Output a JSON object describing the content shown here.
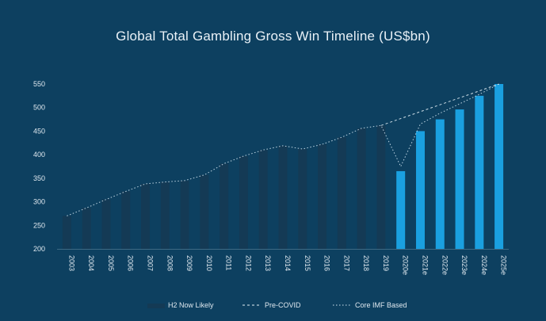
{
  "chart_data": {
    "type": "bar",
    "title": "Global Total Gambling Gross Win Timeline (US$bn)",
    "xlabel": "",
    "ylabel": "",
    "ylim": [
      200,
      550
    ],
    "yticks": [
      200,
      250,
      300,
      350,
      400,
      450,
      500,
      550
    ],
    "categories": [
      "2003",
      "2004",
      "2005",
      "2006",
      "2007",
      "2008",
      "2009",
      "2010",
      "2011",
      "2012",
      "2013",
      "2014",
      "2015",
      "2016",
      "2017",
      "2018",
      "2019",
      "2020e",
      "2021e",
      "2022e",
      "2023e",
      "2024e",
      "2025e"
    ],
    "series": [
      {
        "name": "H2 Now Likely",
        "kind": "bar",
        "values": [
          270,
          287,
          305,
          322,
          338,
          342,
          345,
          357,
          381,
          397,
          410,
          419,
          412,
          422,
          437,
          456,
          462,
          365,
          450,
          475,
          496,
          525,
          550
        ],
        "colors": {
          "historical": "#143a55",
          "forecast": "#1aa0e0"
        }
      },
      {
        "name": "Pre-COVID",
        "kind": "line-dashed",
        "x": [
          "2019",
          "2025e"
        ],
        "values": [
          462,
          550
        ]
      },
      {
        "name": "Core IMF Based",
        "kind": "line-dotted",
        "x": [
          "2003",
          "2004",
          "2005",
          "2006",
          "2007",
          "2008",
          "2009",
          "2010",
          "2011",
          "2012",
          "2013",
          "2014",
          "2015",
          "2016",
          "2017",
          "2018",
          "2019",
          "2020e",
          "2021e",
          "2022e",
          "2023e",
          "2024e",
          "2025e"
        ],
        "values": [
          270,
          287,
          305,
          322,
          338,
          342,
          345,
          357,
          381,
          397,
          410,
          419,
          412,
          422,
          437,
          456,
          462,
          375,
          465,
          488,
          508,
          528,
          550
        ]
      }
    ],
    "legend": {
      "position": "bottom",
      "items": [
        "H2 Now Likely",
        "Pre-COVID",
        "Core IMF Based"
      ]
    },
    "grid": false
  }
}
